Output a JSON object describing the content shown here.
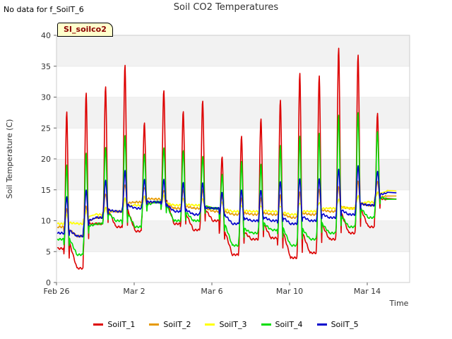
{
  "header": {
    "nodata_note": "No data for f_SoilT_6",
    "title": "Soil CO2 Temperatures",
    "tag": "SI_soilco2"
  },
  "chart_data": {
    "type": "line",
    "title": "Soil CO2 Temperatures",
    "xlabel": "Time",
    "ylabel": "Soil Temperature (C)",
    "ylim": [
      0,
      40
    ],
    "xlim": [
      0,
      19
    ],
    "y_ticks": [
      0,
      5,
      10,
      15,
      20,
      25,
      30,
      35,
      40
    ],
    "x_ticks": [
      {
        "day": 0,
        "label": "Feb 26"
      },
      {
        "day": 4,
        "label": "Mar 2"
      },
      {
        "day": 8,
        "label": "Mar 6"
      },
      {
        "day": 12,
        "label": "Mar 10"
      },
      {
        "day": 16,
        "label": "Mar 14"
      }
    ],
    "x_note": "x values are days since Feb 26",
    "grid": "horizontal bands",
    "legend_position": "bottom",
    "series": [
      {
        "name": "SoilT_1",
        "color": "#dd0000",
        "daily": [
          [
            5.5,
            27.5
          ],
          [
            2.3,
            30.5
          ],
          [
            9.5,
            31.5
          ],
          [
            9.0,
            35.0
          ],
          [
            8.3,
            25.7
          ],
          [
            13.0,
            31.0
          ],
          [
            9.5,
            27.7
          ],
          [
            8.5,
            29.5
          ],
          [
            10.0,
            20.5
          ],
          [
            4.5,
            23.9
          ],
          [
            7.0,
            26.7
          ],
          [
            7.2,
            29.7
          ],
          [
            4.0,
            34.0
          ],
          [
            4.8,
            33.5
          ],
          [
            7.0,
            37.9
          ],
          [
            8.0,
            36.7
          ],
          [
            9.0,
            27.2
          ],
          [
            13.5,
            13.5
          ]
        ]
      },
      {
        "name": "SoilT_2",
        "color": "#e69900",
        "daily": [
          [
            9.0,
            12.0
          ],
          [
            7.5,
            12.5
          ],
          [
            10.5,
            14.5
          ],
          [
            11.5,
            16.0
          ],
          [
            13.0,
            15.5
          ],
          [
            13.5,
            15.0
          ],
          [
            12.0,
            15.0
          ],
          [
            12.0,
            15.0
          ],
          [
            11.5,
            14.0
          ],
          [
            11.0,
            13.5
          ],
          [
            11.0,
            13.5
          ],
          [
            11.0,
            14.0
          ],
          [
            10.5,
            14.5
          ],
          [
            11.0,
            15.0
          ],
          [
            11.5,
            15.5
          ],
          [
            12.0,
            16.5
          ],
          [
            12.5,
            16.5
          ],
          [
            14.0,
            14.0
          ]
        ]
      },
      {
        "name": "SoilT_3",
        "color": "#ffff00",
        "daily": [
          [
            9.5,
            11.0
          ],
          [
            9.5,
            11.5
          ],
          [
            11.0,
            12.0
          ],
          [
            11.5,
            13.5
          ],
          [
            12.5,
            13.8
          ],
          [
            13.0,
            14.0
          ],
          [
            12.5,
            13.5
          ],
          [
            12.5,
            13.5
          ],
          [
            12.0,
            13.0
          ],
          [
            11.5,
            12.5
          ],
          [
            11.5,
            12.5
          ],
          [
            11.5,
            12.5
          ],
          [
            11.0,
            13.0
          ],
          [
            11.5,
            13.0
          ],
          [
            12.0,
            13.5
          ],
          [
            12.0,
            14.0
          ],
          [
            13.0,
            14.5
          ],
          [
            14.8,
            14.8
          ]
        ]
      },
      {
        "name": "SoilT_4",
        "color": "#00dd00",
        "daily": [
          [
            7.0,
            19.0
          ],
          [
            4.5,
            21.0
          ],
          [
            9.5,
            22.0
          ],
          [
            10.0,
            24.0
          ],
          [
            9.0,
            21.0
          ],
          [
            13.0,
            22.0
          ],
          [
            10.0,
            21.5
          ],
          [
            10.0,
            20.5
          ],
          [
            12.0,
            17.5
          ],
          [
            6.0,
            19.5
          ],
          [
            8.0,
            19.0
          ],
          [
            8.5,
            22.0
          ],
          [
            6.0,
            23.5
          ],
          [
            7.0,
            24.0
          ],
          [
            8.0,
            27.0
          ],
          [
            9.0,
            27.5
          ],
          [
            10.5,
            24.5
          ],
          [
            13.5,
            13.5
          ]
        ]
      },
      {
        "name": "SoilT_5",
        "color": "#0000cc",
        "daily": [
          [
            8.0,
            14.0
          ],
          [
            7.5,
            15.0
          ],
          [
            10.5,
            16.5
          ],
          [
            11.5,
            18.0
          ],
          [
            12.0,
            16.5
          ],
          [
            13.0,
            16.5
          ],
          [
            11.5,
            16.0
          ],
          [
            11.0,
            16.0
          ],
          [
            12.0,
            14.5
          ],
          [
            9.5,
            15.0
          ],
          [
            10.0,
            15.0
          ],
          [
            10.0,
            16.5
          ],
          [
            9.5,
            17.0
          ],
          [
            10.0,
            17.0
          ],
          [
            10.5,
            18.5
          ],
          [
            11.0,
            19.0
          ],
          [
            12.5,
            18.0
          ],
          [
            14.5,
            14.5
          ]
        ]
      }
    ]
  }
}
